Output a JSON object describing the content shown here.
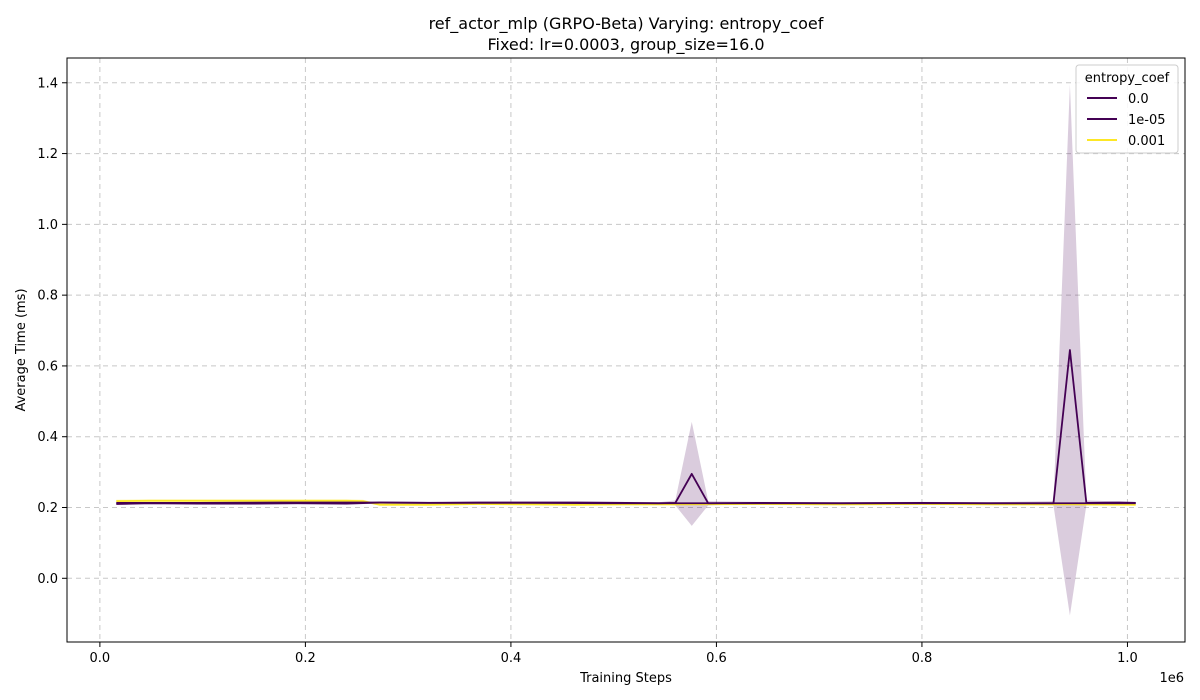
{
  "chart_data": {
    "type": "line",
    "title_line1": "ref_actor_mlp (GRPO-Beta) Varying: entropy_coef",
    "title_line2": "Fixed: lr=0.0003, group_size=16.0",
    "xlabel": "Training Steps",
    "ylabel": "Average Time (ms)",
    "x_offset_label": "1e6",
    "xlim": [
      -32000,
      1056000
    ],
    "ylim": [
      -0.18,
      1.47
    ],
    "x_ticks": [
      0.0,
      0.2,
      0.4,
      0.6,
      0.8,
      1.0
    ],
    "x_tick_labels": [
      "0.0",
      "0.2",
      "0.4",
      "0.6",
      "0.8",
      "1.0"
    ],
    "y_ticks": [
      0.0,
      0.2,
      0.4,
      0.6,
      0.8,
      1.0,
      1.2,
      1.4
    ],
    "y_tick_labels": [
      "0.0",
      "0.2",
      "0.4",
      "0.6",
      "0.8",
      "1.0",
      "1.2",
      "1.4"
    ],
    "grid": true,
    "legend_title": "entropy_coef",
    "legend_position": "top-right",
    "series": [
      {
        "name": "0.0",
        "color": "#440154",
        "band_color": "#440154",
        "x": [
          16000,
          96000,
          176000,
          256000,
          336000,
          416000,
          496000,
          560000,
          576000,
          592000,
          656000,
          736000,
          816000,
          896000,
          976000,
          1008000
        ],
        "y": [
          0.213,
          0.213,
          0.214,
          0.214,
          0.213,
          0.213,
          0.212,
          0.212,
          0.212,
          0.212,
          0.212,
          0.212,
          0.212,
          0.212,
          0.212,
          0.212
        ],
        "lower": [
          0.211,
          0.211,
          0.212,
          0.212,
          0.211,
          0.211,
          0.21,
          0.21,
          0.21,
          0.21,
          0.21,
          0.21,
          0.21,
          0.21,
          0.21,
          0.21
        ],
        "upper": [
          0.215,
          0.215,
          0.216,
          0.216,
          0.215,
          0.215,
          0.214,
          0.214,
          0.214,
          0.214,
          0.214,
          0.214,
          0.214,
          0.214,
          0.214,
          0.214
        ]
      },
      {
        "name": "1e-05",
        "color": "#440154",
        "band_color": "#440154",
        "x": [
          16000,
          48000,
          96000,
          144000,
          192000,
          240000,
          272000,
          320000,
          368000,
          416000,
          464000,
          512000,
          544000,
          560000,
          576000,
          592000,
          640000,
          720000,
          800000,
          864000,
          928000,
          944000,
          960000,
          992000,
          1008000
        ],
        "y": [
          0.21,
          0.212,
          0.211,
          0.211,
          0.212,
          0.211,
          0.214,
          0.213,
          0.214,
          0.214,
          0.214,
          0.213,
          0.212,
          0.213,
          0.295,
          0.212,
          0.213,
          0.212,
          0.213,
          0.212,
          0.212,
          0.645,
          0.213,
          0.214,
          0.213
        ],
        "lower": [
          0.207,
          0.209,
          0.208,
          0.208,
          0.209,
          0.208,
          0.211,
          0.21,
          0.211,
          0.211,
          0.211,
          0.21,
          0.209,
          0.206,
          0.148,
          0.206,
          0.21,
          0.209,
          0.21,
          0.209,
          0.206,
          -0.105,
          0.206,
          0.211,
          0.21
        ],
        "upper": [
          0.213,
          0.215,
          0.214,
          0.214,
          0.215,
          0.214,
          0.217,
          0.216,
          0.217,
          0.217,
          0.217,
          0.216,
          0.215,
          0.22,
          0.442,
          0.218,
          0.216,
          0.215,
          0.216,
          0.215,
          0.218,
          1.395,
          0.22,
          0.217,
          0.216
        ]
      },
      {
        "name": "0.001",
        "color": "#fde725",
        "band_color": "#fde725",
        "x": [
          16000,
          48000,
          96000,
          144000,
          192000,
          240000,
          256000,
          272000,
          320000,
          368000,
          416000,
          464000,
          512000,
          560000,
          640000,
          720000,
          800000,
          880000,
          944000,
          1008000
        ],
        "y": [
          0.218,
          0.219,
          0.219,
          0.219,
          0.219,
          0.219,
          0.218,
          0.208,
          0.208,
          0.21,
          0.209,
          0.208,
          0.209,
          0.209,
          0.21,
          0.209,
          0.21,
          0.209,
          0.209,
          0.208
        ],
        "lower": [
          0.214,
          0.215,
          0.215,
          0.215,
          0.215,
          0.215,
          0.214,
          0.205,
          0.205,
          0.207,
          0.206,
          0.205,
          0.206,
          0.206,
          0.207,
          0.206,
          0.207,
          0.206,
          0.206,
          0.205
        ],
        "upper": [
          0.222,
          0.223,
          0.223,
          0.223,
          0.223,
          0.223,
          0.222,
          0.211,
          0.211,
          0.213,
          0.212,
          0.211,
          0.212,
          0.212,
          0.213,
          0.212,
          0.213,
          0.212,
          0.212,
          0.211
        ]
      }
    ]
  }
}
